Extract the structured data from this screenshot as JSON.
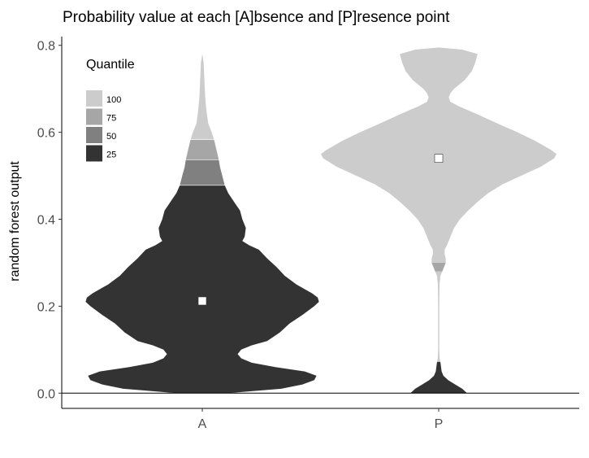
{
  "chart_data": {
    "type": "violin",
    "title": "Probability value at each [A]bsence and [P]resence point",
    "xlabel": "",
    "ylabel": "random forest output",
    "ylim": [
      -0.035,
      0.82
    ],
    "y_ticks": [
      0.0,
      0.2,
      0.4,
      0.6,
      0.8
    ],
    "y_tick_labels": [
      "0.0",
      "0.2",
      "0.4",
      "0.6",
      "0.8"
    ],
    "categories": [
      "A",
      "P"
    ],
    "reference_line": 0.0,
    "legend": {
      "title": "Quantile",
      "position": "top-left",
      "entries": [
        {
          "label": "100",
          "color": "#cccccc"
        },
        {
          "label": "75",
          "color": "#a6a6a6"
        },
        {
          "label": "50",
          "color": "#808080"
        },
        {
          "label": "25",
          "color": "#333333"
        }
      ]
    },
    "violins": [
      {
        "category": "A",
        "median_marker": 0.212,
        "quantile_breaks": {
          "q50_top": 0.478,
          "q75_top": 0.537,
          "q100_top": 0.583
        },
        "density": [
          [
            0.0,
            0.22
          ],
          [
            0.01,
            0.67
          ],
          [
            0.02,
            0.85
          ],
          [
            0.03,
            0.95
          ],
          [
            0.04,
            0.97
          ],
          [
            0.05,
            0.87
          ],
          [
            0.06,
            0.62
          ],
          [
            0.07,
            0.42
          ],
          [
            0.08,
            0.33
          ],
          [
            0.09,
            0.3
          ],
          [
            0.1,
            0.33
          ],
          [
            0.11,
            0.42
          ],
          [
            0.12,
            0.55
          ],
          [
            0.14,
            0.66
          ],
          [
            0.16,
            0.74
          ],
          [
            0.18,
            0.85
          ],
          [
            0.2,
            0.95
          ],
          [
            0.21,
            0.99
          ],
          [
            0.22,
            0.98
          ],
          [
            0.23,
            0.93
          ],
          [
            0.25,
            0.8
          ],
          [
            0.27,
            0.7
          ],
          [
            0.29,
            0.63
          ],
          [
            0.31,
            0.55
          ],
          [
            0.33,
            0.48
          ],
          [
            0.34,
            0.4
          ],
          [
            0.35,
            0.34
          ],
          [
            0.36,
            0.36
          ],
          [
            0.38,
            0.37
          ],
          [
            0.4,
            0.34
          ],
          [
            0.42,
            0.32
          ],
          [
            0.44,
            0.27
          ],
          [
            0.46,
            0.22
          ],
          [
            0.478,
            0.19
          ],
          [
            0.5,
            0.17
          ],
          [
            0.52,
            0.15
          ],
          [
            0.537,
            0.14
          ],
          [
            0.56,
            0.12
          ],
          [
            0.583,
            0.1
          ],
          [
            0.6,
            0.08
          ],
          [
            0.62,
            0.05
          ],
          [
            0.65,
            0.035
          ],
          [
            0.68,
            0.025
          ],
          [
            0.72,
            0.018
          ],
          [
            0.76,
            0.012
          ],
          [
            0.78,
            0.0
          ]
        ]
      },
      {
        "category": "P",
        "median_marker": 0.54,
        "quantile_breaks": {
          "q25_top": 0.072,
          "q50_top": 0.28,
          "q75_top": 0.3,
          "q100_top": 0.79
        },
        "density": [
          [
            0.0,
            0.24
          ],
          [
            0.01,
            0.2
          ],
          [
            0.02,
            0.14
          ],
          [
            0.03,
            0.08
          ],
          [
            0.04,
            0.04
          ],
          [
            0.05,
            0.025
          ],
          [
            0.06,
            0.02
          ],
          [
            0.07,
            0.015
          ],
          [
            0.08,
            0.008
          ],
          [
            0.1,
            0.005
          ],
          [
            0.15,
            0.005
          ],
          [
            0.2,
            0.005
          ],
          [
            0.25,
            0.007
          ],
          [
            0.27,
            0.015
          ],
          [
            0.28,
            0.03
          ],
          [
            0.29,
            0.045
          ],
          [
            0.3,
            0.06
          ],
          [
            0.31,
            0.06
          ],
          [
            0.32,
            0.05
          ],
          [
            0.33,
            0.05
          ],
          [
            0.34,
            0.07
          ],
          [
            0.36,
            0.1
          ],
          [
            0.38,
            0.13
          ],
          [
            0.4,
            0.18
          ],
          [
            0.42,
            0.25
          ],
          [
            0.44,
            0.33
          ],
          [
            0.46,
            0.42
          ],
          [
            0.48,
            0.54
          ],
          [
            0.5,
            0.7
          ],
          [
            0.52,
            0.86
          ],
          [
            0.54,
            0.98
          ],
          [
            0.55,
            1.0
          ],
          [
            0.56,
            0.95
          ],
          [
            0.58,
            0.82
          ],
          [
            0.6,
            0.67
          ],
          [
            0.62,
            0.5
          ],
          [
            0.64,
            0.34
          ],
          [
            0.66,
            0.17
          ],
          [
            0.67,
            0.1
          ],
          [
            0.68,
            0.085
          ],
          [
            0.69,
            0.1
          ],
          [
            0.7,
            0.13
          ],
          [
            0.72,
            0.22
          ],
          [
            0.74,
            0.28
          ],
          [
            0.76,
            0.31
          ],
          [
            0.78,
            0.33
          ],
          [
            0.79,
            0.2
          ],
          [
            0.795,
            0.0
          ]
        ]
      }
    ]
  }
}
